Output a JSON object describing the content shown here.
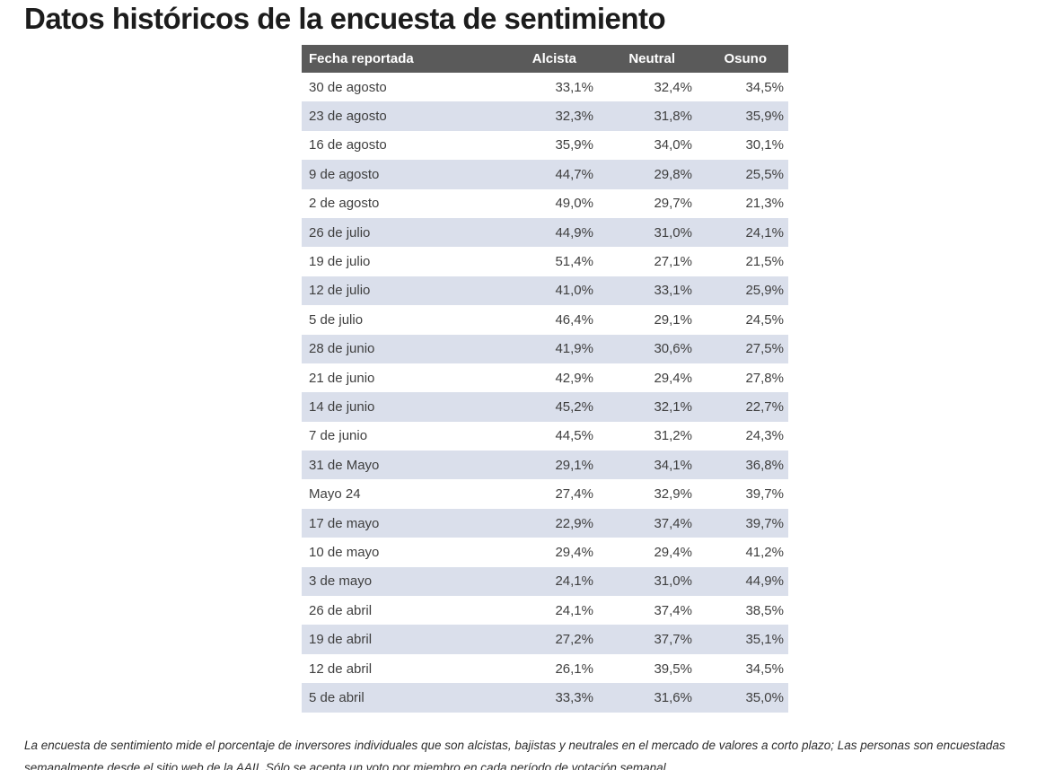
{
  "page": {
    "title": "Datos históricos de la encuesta de sentimiento",
    "footnote": "La encuesta de sentimiento mide el porcentaje de inversores individuales que son alcistas, bajistas y neutrales en el mercado de valores a corto plazo; Las personas son encuestadas semanalmente desde el sitio web de la AAII. Sólo se acepta un voto por miembro en cada período de votación semanal."
  },
  "chart_data": {
    "type": "table",
    "title": "Datos históricos de la encuesta de sentimiento",
    "columns": [
      "Fecha reportada",
      "Alcista",
      "Neutral",
      "Osuno"
    ],
    "value_format": "percentage, Spanish decimal comma, one decimal place",
    "rows": [
      [
        "30 de agosto",
        "33,1%",
        "32,4%",
        "34,5%"
      ],
      [
        "23 de agosto",
        "32,3%",
        "31,8%",
        "35,9%"
      ],
      [
        "16 de agosto",
        "35,9%",
        "34,0%",
        "30,1%"
      ],
      [
        "9 de agosto",
        "44,7%",
        "29,8%",
        "25,5%"
      ],
      [
        "2 de agosto",
        "49,0%",
        "29,7%",
        "21,3%"
      ],
      [
        "26 de julio",
        "44,9%",
        "31,0%",
        "24,1%"
      ],
      [
        "19 de julio",
        "51,4%",
        "27,1%",
        "21,5%"
      ],
      [
        "12 de julio",
        "41,0%",
        "33,1%",
        "25,9%"
      ],
      [
        "5 de julio",
        "46,4%",
        "29,1%",
        "24,5%"
      ],
      [
        "28 de junio",
        "41,9%",
        "30,6%",
        "27,5%"
      ],
      [
        "21 de junio",
        "42,9%",
        "29,4%",
        "27,8%"
      ],
      [
        "14 de junio",
        "45,2%",
        "32,1%",
        "22,7%"
      ],
      [
        "7 de junio",
        "44,5%",
        "31,2%",
        "24,3%"
      ],
      [
        "31 de Mayo",
        "29,1%",
        "34,1%",
        "36,8%"
      ],
      [
        "Mayo 24",
        "27,4%",
        "32,9%",
        "39,7%"
      ],
      [
        "17 de mayo",
        "22,9%",
        "37,4%",
        "39,7%"
      ],
      [
        "10 de mayo",
        "29,4%",
        "29,4%",
        "41,2%"
      ],
      [
        "3 de mayo",
        "24,1%",
        "31,0%",
        "44,9%"
      ],
      [
        "26 de abril",
        "24,1%",
        "37,4%",
        "38,5%"
      ],
      [
        "19 de abril",
        "27,2%",
        "37,7%",
        "35,1%"
      ],
      [
        "12 de abril",
        "26,1%",
        "39,5%",
        "34,5%"
      ],
      [
        "5 de abril",
        "33,3%",
        "31,6%",
        "35,0%"
      ]
    ],
    "layout": {
      "striped": true,
      "stripe_on": "even-rows",
      "date_align": "left",
      "numeric_align": "right",
      "grid": false,
      "legend": "none"
    }
  },
  "colors": {
    "header_bg": "#5a5a5a",
    "header_text": "#ffffff",
    "stripe_bg": "#dadfeb",
    "body_text": "#3f3f3f",
    "title_text": "#1c1c1c",
    "footnote_text": "#2e2e2e",
    "page_bg": "#ffffff"
  }
}
